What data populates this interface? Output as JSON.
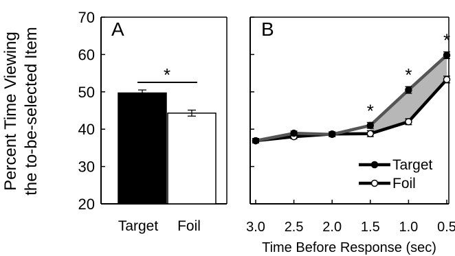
{
  "ylabel_line1": "Percent Time Viewing",
  "ylabel_line2": "the to-be-selected Item",
  "chart_data": [
    {
      "panel": "A",
      "type": "bar",
      "categories": [
        "Target",
        "Foil"
      ],
      "values": [
        49.7,
        44.3
      ],
      "errors": [
        0.8,
        0.8
      ],
      "colors": [
        "#000000",
        "#ffffff"
      ],
      "ylim": [
        20,
        70
      ],
      "yticks": [
        20,
        30,
        40,
        50,
        60,
        70
      ],
      "significance": "*"
    },
    {
      "panel": "B",
      "type": "line",
      "x": [
        "3.0",
        "2.5",
        "2.0",
        "1.5",
        "1.0",
        "0.5"
      ],
      "xlabel": "Time Before Response (sec)",
      "ylim": [
        20,
        70
      ],
      "series": [
        {
          "name": "Target",
          "values": [
            36.9,
            38.9,
            38.6,
            41.0,
            50.5,
            59.8
          ],
          "errors": [
            0.6,
            0.6,
            0.6,
            0.8,
            0.9,
            0.9
          ],
          "marker": "filled",
          "color": "#000000"
        },
        {
          "name": "Foil",
          "values": [
            36.9,
            38.0,
            38.7,
            38.8,
            42.0,
            53.3
          ],
          "errors": [
            0.6,
            0.6,
            0.6,
            0.8,
            0.8,
            0.9
          ],
          "marker": "open",
          "color": "#000000"
        }
      ],
      "shaded_region_color": "#b7b7b7",
      "significance": [
        {
          "x": "1.5",
          "label": "*"
        },
        {
          "x": "1.0",
          "label": "*"
        },
        {
          "x": "0.5",
          "label": "*"
        }
      ],
      "legend_position": "bottom-right"
    }
  ]
}
